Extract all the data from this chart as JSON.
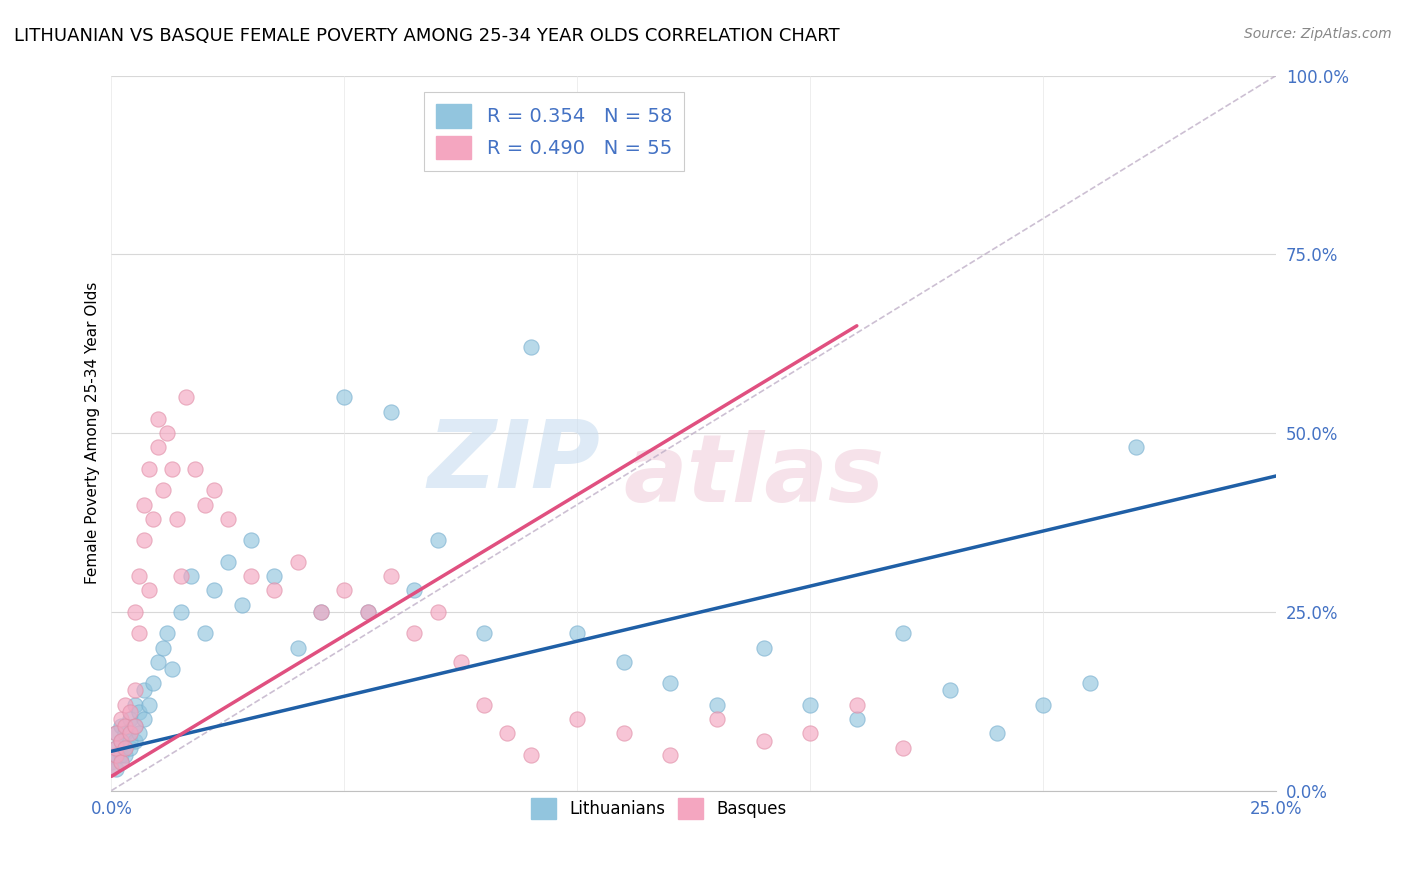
{
  "title": "LITHUANIAN VS BASQUE FEMALE POVERTY AMONG 25-34 YEAR OLDS CORRELATION CHART",
  "source": "Source: ZipAtlas.com",
  "ylabel": "Female Poverty Among 25-34 Year Olds",
  "R_lith": 0.354,
  "N_lith": 58,
  "R_basque": 0.49,
  "N_basque": 55,
  "color_lith": "#92c5de",
  "color_basque": "#f4a6c0",
  "color_lith_line": "#1f5fa6",
  "color_basque_line": "#e05080",
  "color_diag": "#c8b8c8",
  "watermark_color": "#d8e8f0",
  "watermark_color2": "#f0e0e8",
  "xmin": 0.0,
  "xmax": 0.25,
  "ymin": 0.0,
  "ymax": 1.0,
  "lith_x": [
    0.0,
    0.001,
    0.001,
    0.001,
    0.001,
    0.002,
    0.002,
    0.002,
    0.002,
    0.003,
    0.003,
    0.003,
    0.004,
    0.004,
    0.004,
    0.005,
    0.005,
    0.005,
    0.006,
    0.006,
    0.007,
    0.007,
    0.008,
    0.009,
    0.01,
    0.011,
    0.012,
    0.013,
    0.015,
    0.017,
    0.02,
    0.022,
    0.025,
    0.028,
    0.03,
    0.035,
    0.04,
    0.045,
    0.05,
    0.055,
    0.06,
    0.065,
    0.07,
    0.08,
    0.09,
    0.1,
    0.11,
    0.12,
    0.13,
    0.14,
    0.15,
    0.16,
    0.17,
    0.18,
    0.19,
    0.2,
    0.21,
    0.22
  ],
  "lith_y": [
    0.04,
    0.03,
    0.06,
    0.05,
    0.08,
    0.04,
    0.07,
    0.05,
    0.09,
    0.06,
    0.08,
    0.05,
    0.07,
    0.1,
    0.06,
    0.09,
    0.12,
    0.07,
    0.08,
    0.11,
    0.1,
    0.14,
    0.12,
    0.15,
    0.18,
    0.2,
    0.22,
    0.17,
    0.25,
    0.3,
    0.22,
    0.28,
    0.32,
    0.26,
    0.35,
    0.3,
    0.2,
    0.25,
    0.55,
    0.25,
    0.53,
    0.28,
    0.35,
    0.22,
    0.62,
    0.22,
    0.18,
    0.15,
    0.12,
    0.2,
    0.12,
    0.1,
    0.22,
    0.14,
    0.08,
    0.12,
    0.15,
    0.48
  ],
  "basque_x": [
    0.0,
    0.001,
    0.001,
    0.001,
    0.002,
    0.002,
    0.002,
    0.003,
    0.003,
    0.003,
    0.004,
    0.004,
    0.005,
    0.005,
    0.005,
    0.006,
    0.006,
    0.007,
    0.007,
    0.008,
    0.008,
    0.009,
    0.01,
    0.01,
    0.011,
    0.012,
    0.013,
    0.014,
    0.015,
    0.016,
    0.018,
    0.02,
    0.022,
    0.025,
    0.03,
    0.035,
    0.04,
    0.045,
    0.05,
    0.055,
    0.06,
    0.065,
    0.07,
    0.075,
    0.08,
    0.085,
    0.09,
    0.1,
    0.11,
    0.12,
    0.13,
    0.14,
    0.15,
    0.16,
    0.17
  ],
  "basque_y": [
    0.03,
    0.05,
    0.08,
    0.06,
    0.04,
    0.07,
    0.1,
    0.06,
    0.09,
    0.12,
    0.08,
    0.11,
    0.25,
    0.14,
    0.09,
    0.3,
    0.22,
    0.35,
    0.4,
    0.28,
    0.45,
    0.38,
    0.48,
    0.52,
    0.42,
    0.5,
    0.45,
    0.38,
    0.3,
    0.55,
    0.45,
    0.4,
    0.42,
    0.38,
    0.3,
    0.28,
    0.32,
    0.25,
    0.28,
    0.25,
    0.3,
    0.22,
    0.25,
    0.18,
    0.12,
    0.08,
    0.05,
    0.1,
    0.08,
    0.05,
    0.1,
    0.07,
    0.08,
    0.12,
    0.06
  ],
  "lith_line_x0": 0.0,
  "lith_line_y0": 0.055,
  "lith_line_x1": 0.25,
  "lith_line_y1": 0.44,
  "basque_line_x0": 0.0,
  "basque_line_y0": 0.02,
  "basque_line_x1": 0.16,
  "basque_line_y1": 0.65
}
